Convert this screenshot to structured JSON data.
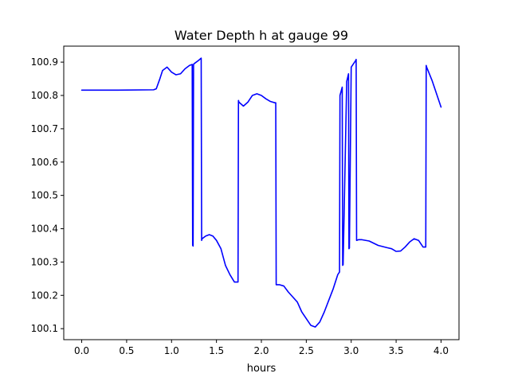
{
  "chart_data": {
    "type": "line",
    "title": "Water Depth h at gauge 99",
    "xlabel": "hours",
    "ylabel": "",
    "xlim": [
      -0.2,
      4.2
    ],
    "ylim": [
      100.067,
      100.948
    ],
    "xticks": [
      0.0,
      0.5,
      1.0,
      1.5,
      2.0,
      2.5,
      3.0,
      3.5,
      4.0
    ],
    "xtick_labels": [
      "0.0",
      "0.5",
      "1.0",
      "1.5",
      "2.0",
      "2.5",
      "3.0",
      "3.5",
      "4.0"
    ],
    "yticks": [
      100.1,
      100.2,
      100.3,
      100.4,
      100.5,
      100.6,
      100.7,
      100.8,
      100.9
    ],
    "ytick_labels": [
      "100.1",
      "100.2",
      "100.3",
      "100.4",
      "100.5",
      "100.6",
      "100.7",
      "100.8",
      "100.9"
    ],
    "grid": false,
    "line_color": "#0000ff",
    "series": [
      {
        "color": "#0000ff",
        "x": [
          0.0,
          0.4,
          0.8,
          0.83,
          0.87,
          0.9,
          0.95,
          1.0,
          1.05,
          1.1,
          1.15,
          1.2,
          1.23,
          1.235,
          1.24,
          1.245,
          1.25,
          1.3,
          1.33,
          1.335,
          1.34,
          1.38,
          1.42,
          1.46,
          1.5,
          1.55,
          1.6,
          1.65,
          1.7,
          1.74,
          1.745,
          1.75,
          1.8,
          1.85,
          1.9,
          1.95,
          2.0,
          2.05,
          2.1,
          2.15,
          2.16,
          2.165,
          2.2,
          2.25,
          2.3,
          2.35,
          2.4,
          2.45,
          2.5,
          2.55,
          2.6,
          2.65,
          2.7,
          2.75,
          2.8,
          2.85,
          2.87,
          2.875,
          2.9,
          2.905,
          2.91,
          2.95,
          2.97,
          2.975,
          2.98,
          3.0,
          3.05,
          3.055,
          3.06,
          3.08,
          3.12,
          3.2,
          3.3,
          3.4,
          3.45,
          3.5,
          3.55,
          3.6,
          3.65,
          3.7,
          3.75,
          3.8,
          3.83,
          3.835,
          3.84,
          3.9,
          4.0
        ],
        "y": [
          100.816,
          100.816,
          100.817,
          100.82,
          100.85,
          100.875,
          100.885,
          100.87,
          100.862,
          100.865,
          100.88,
          100.89,
          100.893,
          100.35,
          100.348,
          100.893,
          100.895,
          100.905,
          100.912,
          100.365,
          100.37,
          100.378,
          100.382,
          100.378,
          100.365,
          100.34,
          100.29,
          100.262,
          100.24,
          100.24,
          100.785,
          100.78,
          100.768,
          100.78,
          100.8,
          100.805,
          100.8,
          100.79,
          100.782,
          100.778,
          100.778,
          100.232,
          100.232,
          100.228,
          100.21,
          100.195,
          100.18,
          100.15,
          100.13,
          100.11,
          100.105,
          100.12,
          100.15,
          100.185,
          100.22,
          100.262,
          100.27,
          100.8,
          100.825,
          100.29,
          100.292,
          100.842,
          100.865,
          100.34,
          100.342,
          100.885,
          100.905,
          100.908,
          100.365,
          100.367,
          100.367,
          100.363,
          100.35,
          100.343,
          100.34,
          100.332,
          100.333,
          100.345,
          100.36,
          100.37,
          100.365,
          100.345,
          100.345,
          100.89,
          100.885,
          100.845,
          100.765
        ]
      }
    ]
  }
}
